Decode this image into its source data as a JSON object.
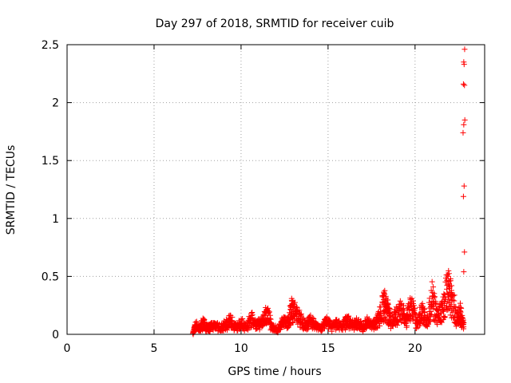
{
  "chart_data": {
    "type": "scatter",
    "title": "Day 297 of 2018, SRMTID for receiver cuib",
    "xlabel": "GPS time / hours",
    "ylabel": "SRMTID / TECUs",
    "xlim": [
      0,
      24
    ],
    "ylim": [
      0,
      2.5
    ],
    "x_ticks": [
      0,
      5,
      10,
      15,
      20
    ],
    "x_tick_labels": [
      "0",
      "5",
      "10",
      "15",
      "20"
    ],
    "y_ticks": [
      0,
      0.5,
      1,
      1.5,
      2,
      2.5
    ],
    "y_tick_labels": [
      "0",
      "0.5",
      "1",
      "1.5",
      "2",
      "2.5"
    ],
    "grid": true,
    "marker": "+",
    "series": [
      {
        "name": "cuib",
        "color": "#ff0000",
        "data_range_hours": [
          7.2,
          22.9
        ],
        "points": [
          [
            7.25,
            0.0
          ],
          [
            7.4,
            0.08
          ],
          [
            7.6,
            0.03
          ],
          [
            7.8,
            0.1
          ],
          [
            8.0,
            0.06
          ],
          [
            8.2,
            0.05
          ],
          [
            8.5,
            0.09
          ],
          [
            8.8,
            0.04
          ],
          [
            9.1,
            0.08
          ],
          [
            9.4,
            0.12
          ],
          [
            9.7,
            0.06
          ],
          [
            10.0,
            0.1
          ],
          [
            10.3,
            0.05
          ],
          [
            10.6,
            0.14
          ],
          [
            10.9,
            0.08
          ],
          [
            11.2,
            0.12
          ],
          [
            11.5,
            0.2
          ],
          [
            11.8,
            0.06
          ],
          [
            12.1,
            0.02
          ],
          [
            12.4,
            0.12
          ],
          [
            12.7,
            0.1
          ],
          [
            12.9,
            0.25
          ],
          [
            13.1,
            0.2
          ],
          [
            13.4,
            0.14
          ],
          [
            13.7,
            0.08
          ],
          [
            14.0,
            0.12
          ],
          [
            14.3,
            0.09
          ],
          [
            14.6,
            0.04
          ],
          [
            14.9,
            0.11
          ],
          [
            15.2,
            0.07
          ],
          [
            15.5,
            0.1
          ],
          [
            15.8,
            0.06
          ],
          [
            16.1,
            0.13
          ],
          [
            16.4,
            0.08
          ],
          [
            16.7,
            0.1
          ],
          [
            17.0,
            0.05
          ],
          [
            17.3,
            0.12
          ],
          [
            17.6,
            0.08
          ],
          [
            17.9,
            0.15
          ],
          [
            18.2,
            0.3
          ],
          [
            18.4,
            0.25
          ],
          [
            18.6,
            0.1
          ],
          [
            18.9,
            0.18
          ],
          [
            19.2,
            0.22
          ],
          [
            19.5,
            0.14
          ],
          [
            19.8,
            0.28
          ],
          [
            20.1,
            0.1
          ],
          [
            20.4,
            0.2
          ],
          [
            20.7,
            0.12
          ],
          [
            21.0,
            0.36
          ],
          [
            21.3,
            0.15
          ],
          [
            21.6,
            0.25
          ],
          [
            21.9,
            0.5
          ],
          [
            22.1,
            0.35
          ],
          [
            22.4,
            0.15
          ],
          [
            22.6,
            0.2
          ],
          [
            22.8,
            0.1
          ]
        ],
        "outliers": [
          [
            22.85,
            2.46
          ],
          [
            22.8,
            2.35
          ],
          [
            22.82,
            2.33
          ],
          [
            22.78,
            2.16
          ],
          [
            22.84,
            2.15
          ],
          [
            22.86,
            1.85
          ],
          [
            22.8,
            1.81
          ],
          [
            22.76,
            1.74
          ],
          [
            22.82,
            1.28
          ],
          [
            22.78,
            1.19
          ],
          [
            22.84,
            0.71
          ],
          [
            22.8,
            0.54
          ]
        ]
      }
    ]
  }
}
